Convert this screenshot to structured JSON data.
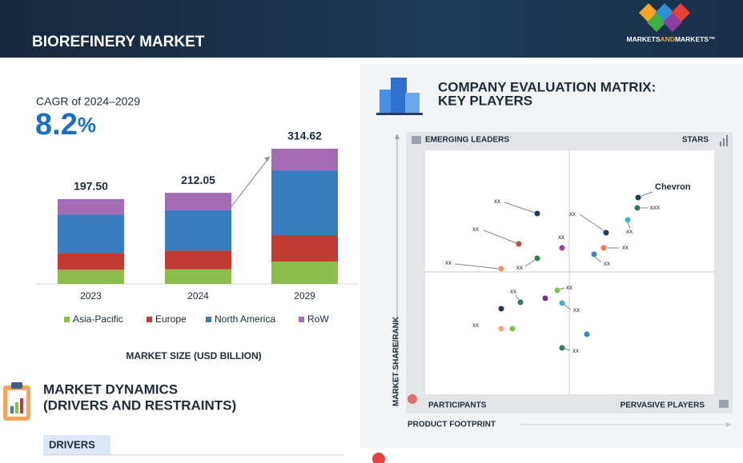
{
  "header": {
    "title": "BIOREFINERY MARKET",
    "logo": {
      "part1": "MARKETS",
      "part2": "AND",
      "part3": "MARKETS™"
    }
  },
  "cagr": {
    "label": "CAGR of 2024–2029",
    "value": "8.2",
    "unit": "%"
  },
  "chart_data": {
    "type": "stacked_bar",
    "x_label": "MARKET SIZE (USD BILLION)",
    "categories": [
      "2023",
      "2024",
      "2029"
    ],
    "totals": [
      197.5,
      212.05,
      314.62
    ],
    "total_labels": [
      "197.50",
      "212.05",
      "314.62"
    ],
    "series": [
      {
        "name": "Asia-Pacific",
        "color": "#8dbd4a",
        "values": [
          32.9,
          34.1,
          52.1
        ]
      },
      {
        "name": "Europe",
        "color": "#c23b33",
        "values": [
          38.9,
          43.3,
          61.4
        ]
      },
      {
        "name": "North America",
        "color": "#3a7dbf",
        "values": [
          89.8,
          94.4,
          150.8
        ]
      },
      {
        "name": "RoW",
        "color": "#a56cb6",
        "values": [
          35.9,
          40.2,
          50.3
        ]
      }
    ]
  },
  "matrix": {
    "title_line1": "COMPANY EVALUATION MATRIX:",
    "title_line2": "KEY PLAYERS",
    "quadrants": {
      "top_left": "EMERGING LEADERS",
      "top_right": "STARS",
      "bottom_left": "PARTICIPANTS",
      "bottom_right": "PERVASIVE PLAYERS"
    },
    "y_label": "MARKET SHARE/RANK",
    "x_label": "PRODUCT FOOTPRINT",
    "point_labels": [
      "Chevron",
      "xxx",
      "xx",
      "xx",
      "xx",
      "xx",
      "xx",
      "xx",
      "xx",
      "xx",
      "xx",
      "xx",
      "xx",
      "xx",
      "xx",
      "xx"
    ]
  },
  "dynamics": {
    "title_line1": "MARKET DYNAMICS",
    "title_line2": "(DRIVERS AND RESTRAINTS)",
    "tab": "DRIVERS"
  }
}
